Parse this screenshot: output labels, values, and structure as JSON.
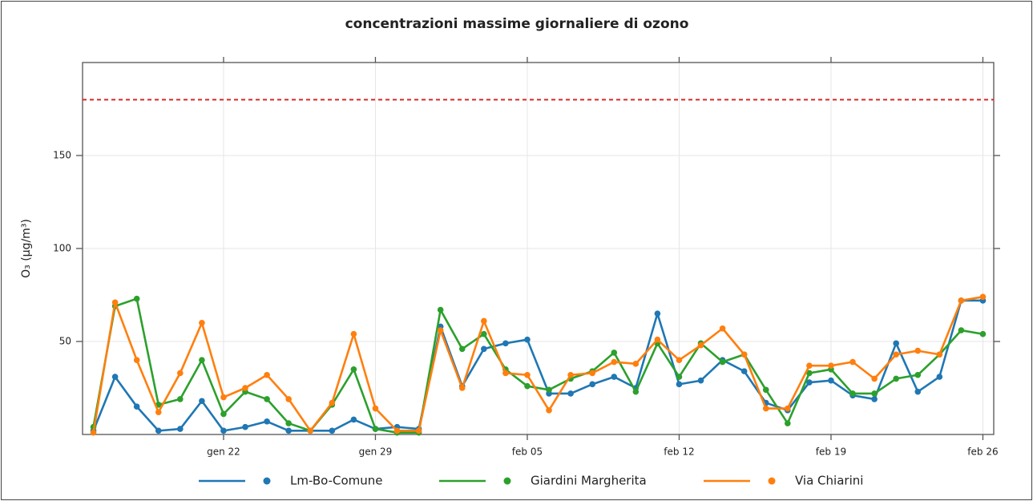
{
  "chart_data": {
    "type": "line",
    "title": "concentrazioni massime giornaliere di ozono",
    "y_label": "O₃ (μg/m³)",
    "categories": [
      null,
      null,
      null,
      null,
      null,
      null,
      "gen 22",
      null,
      null,
      null,
      null,
      null,
      null,
      "gen 29",
      null,
      null,
      null,
      null,
      null,
      null,
      "feb 05",
      null,
      null,
      null,
      null,
      null,
      null,
      "feb 12",
      null,
      null,
      null,
      null,
      null,
      null,
      "feb 19",
      null,
      null,
      null,
      null,
      null,
      null,
      "feb 26"
    ],
    "series": [
      {
        "name": "Lm-Bo-Comune",
        "color": "#1f77b4",
        "values": [
          2,
          31,
          15,
          2,
          3,
          18,
          2,
          4,
          7,
          2,
          2,
          2,
          8,
          3,
          4,
          3,
          58,
          26,
          46,
          49,
          51,
          22,
          22,
          27,
          31,
          25,
          65,
          27,
          29,
          40,
          34,
          17,
          13,
          28,
          29,
          21,
          19,
          49,
          23,
          31,
          72,
          72
        ]
      },
      {
        "name": "Giardini Margherita",
        "color": "#2ca02c",
        "values": [
          4,
          69,
          73,
          16,
          19,
          40,
          11,
          23,
          19,
          6,
          2,
          16,
          35,
          3,
          1,
          1,
          67,
          46,
          54,
          35,
          26,
          24,
          30,
          34,
          44,
          23,
          49,
          31,
          49,
          39,
          43,
          24,
          6,
          33,
          35,
          22,
          22,
          30,
          32,
          43,
          56,
          54
        ]
      },
      {
        "name": "Via Chiarini",
        "color": "#ff7f0e",
        "values": [
          1,
          71,
          40,
          12,
          33,
          60,
          20,
          25,
          32,
          19,
          2,
          17,
          54,
          14,
          2,
          2,
          56,
          25,
          61,
          33,
          32,
          13,
          32,
          33,
          39,
          38,
          51,
          40,
          48,
          57,
          43,
          14,
          14,
          37,
          37,
          39,
          30,
          43,
          45,
          43,
          72,
          74
        ]
      }
    ],
    "hlines": [
      {
        "value": 180,
        "color": "#d62728"
      }
    ],
    "ylim": [
      0,
      200
    ],
    "yticks": [
      50,
      100,
      150
    ],
    "grid": true,
    "legend": "bottom"
  }
}
